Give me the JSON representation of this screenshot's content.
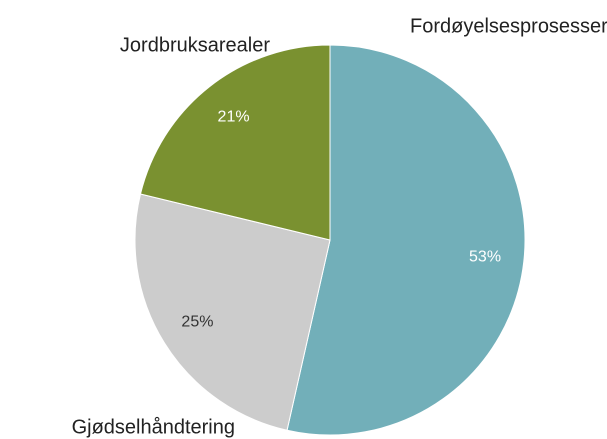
{
  "chart_data": {
    "type": "pie",
    "categories": [
      "Fordøyelsesprosesser husdyr",
      "Gjødselhåndtering",
      "Jordbruksarealer"
    ],
    "values": [
      53,
      25,
      21
    ],
    "value_labels": [
      "53%",
      "25%",
      "21%"
    ],
    "colors": [
      "#72afb9",
      "#cccccc",
      "#7a9130"
    ]
  }
}
